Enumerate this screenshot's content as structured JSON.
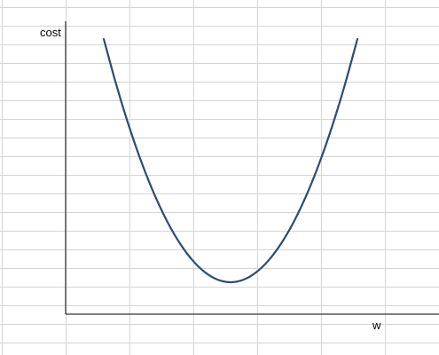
{
  "colors": {
    "curve": "#2a4c73",
    "axis": "#000000",
    "gridline": "#d4d4d4",
    "background": "#ffffff"
  },
  "chart_data": {
    "type": "line",
    "title": "",
    "xlabel": "w",
    "ylabel": "cost",
    "grid": true,
    "legend": "none",
    "axis_ticks": false,
    "series": [
      {
        "x": [
          -1.0,
          -0.9,
          -0.8,
          -0.7,
          -0.6,
          -0.5,
          -0.4,
          -0.3,
          -0.2,
          -0.1,
          0.0,
          0.1,
          0.2,
          0.3,
          0.4,
          0.5,
          0.6,
          0.7,
          0.8,
          0.9,
          1.0
        ],
        "y": [
          1.0,
          0.81,
          0.64,
          0.49,
          0.36,
          0.25,
          0.16,
          0.09,
          0.04,
          0.01,
          0.0,
          0.01,
          0.04,
          0.09,
          0.16,
          0.25,
          0.36,
          0.49,
          0.64,
          0.81,
          1.0
        ]
      }
    ]
  }
}
